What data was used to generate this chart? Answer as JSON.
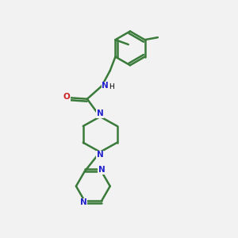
{
  "background_color": "#f2f2f2",
  "bond_color": "#3a7a3a",
  "bond_width": 1.8,
  "N_color": "#2222cc",
  "O_color": "#cc2222",
  "figsize": [
    3.0,
    3.0
  ],
  "dpi": 100,
  "xlim": [
    0,
    10
  ],
  "ylim": [
    0,
    10
  ]
}
